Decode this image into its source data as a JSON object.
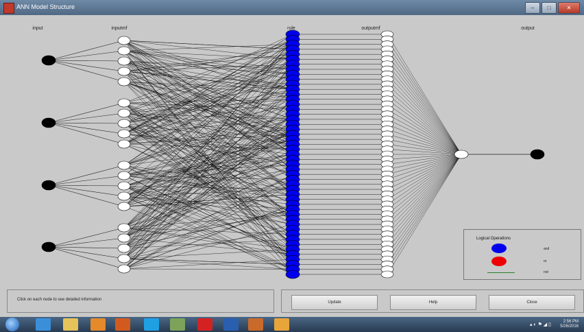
{
  "window": {
    "title": "ANN Model Structure"
  },
  "window_buttons": {
    "minimize": "–",
    "maximize": "□",
    "close": "✕"
  },
  "layers": {
    "input_label": "input",
    "input_mf_label": "inputmf",
    "rule_label": "rule",
    "output_mf_label": "outputmf",
    "output_label": "output"
  },
  "network": {
    "inputs": 4,
    "mfs_per_input": 5,
    "rules": 49,
    "output_mfs": 49,
    "outputs": 1,
    "colors": {
      "input": "#000000",
      "rule": "#0000ee",
      "mf": "#ffffff",
      "output": "#000000",
      "edge": "#000000"
    }
  },
  "legend": {
    "title": "Logical Operations",
    "items": [
      {
        "label": "and",
        "color": "#0000ee"
      },
      {
        "label": "or",
        "color": "#ee0000"
      },
      {
        "label": "not",
        "color": "#2a7d2a"
      }
    ]
  },
  "status": {
    "text": "Click on each node to see detailed information"
  },
  "buttons": {
    "update": "Update",
    "help": "Help",
    "close": "Close"
  },
  "taskbar": {
    "icons": [
      "windows-start-icon",
      "ie-icon",
      "explorer-icon",
      "media-player-icon",
      "firefox-icon",
      "skype-icon",
      "network-icon",
      "acrobat-icon",
      "word-icon",
      "matlab-icon",
      "paint-icon"
    ],
    "clock_time": "2:56 PM",
    "clock_date": "5/26/2016"
  }
}
